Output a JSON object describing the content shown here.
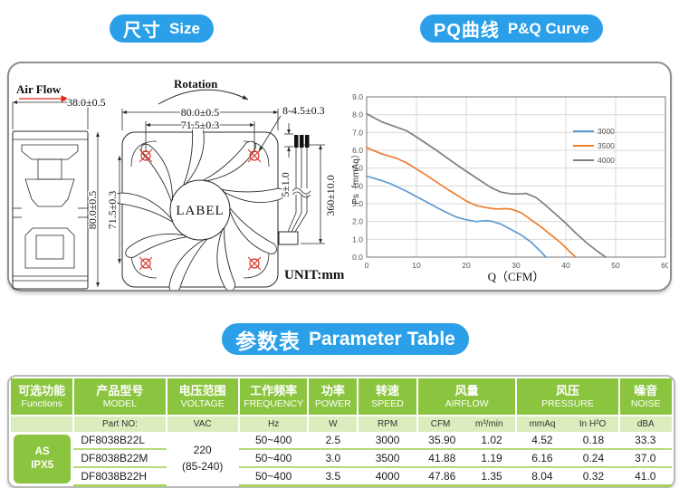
{
  "badges": {
    "size": {
      "zh": "尺寸",
      "en": "Size"
    },
    "pq": {
      "zh": "PQ曲线",
      "en": "P&Q Curve"
    },
    "param": {
      "zh": "参数表",
      "en": "Parameter Table"
    }
  },
  "colors": {
    "accent_blue": "#2BA0E8",
    "table_green": "#8BC53F",
    "table_light_green": "#DCEDBD",
    "row_line_green": "#B5DB7C",
    "drawing_red": "#E3261D"
  },
  "drawing": {
    "air_flow": "Air Flow",
    "rotation": "Rotation",
    "dim_depth": "38.0±0.5",
    "dim_width": "80.0±0.5",
    "dim_hole_span_h": "71.5±0.3",
    "dim_holes": "8-4.5±0.3",
    "dim_height": "80.0±0.5",
    "dim_hole_span_v": "71.5±0.3",
    "fan_label": "LABEL",
    "dim_wire_tip": "5±1.0",
    "dim_wire_length": "360±10.0",
    "unit": "UNIT:mm"
  },
  "chart_data": {
    "type": "line",
    "xlabel": "Q（CFM）",
    "ylabel": "Ps（mmAq）",
    "xlim": [
      0,
      60
    ],
    "ylim": [
      0,
      9
    ],
    "xticks": [
      0,
      10,
      20,
      30,
      40,
      50,
      60
    ],
    "ytick_labels": [
      "0.0",
      "1.0",
      "2.0",
      "3.0",
      "4.0",
      "5.0",
      "6.0",
      "7.0",
      "8.0",
      "9.0"
    ],
    "grid": true,
    "legend_position": "upper right",
    "series": [
      {
        "name": "3000",
        "color": "#5B9BD5",
        "points": [
          [
            0,
            4.55
          ],
          [
            3,
            4.3
          ],
          [
            5,
            4.1
          ],
          [
            8,
            3.7
          ],
          [
            12,
            3.1
          ],
          [
            15,
            2.65
          ],
          [
            18,
            2.25
          ],
          [
            20,
            2.1
          ],
          [
            22,
            2.0
          ],
          [
            24,
            2.05
          ],
          [
            25,
            2.02
          ],
          [
            27,
            1.85
          ],
          [
            29,
            1.55
          ],
          [
            31,
            1.25
          ],
          [
            33,
            0.85
          ],
          [
            35,
            0.3
          ],
          [
            36,
            0.0
          ]
        ]
      },
      {
        "name": "3500",
        "color": "#ED7D31",
        "points": [
          [
            0,
            6.15
          ],
          [
            3,
            5.8
          ],
          [
            6,
            5.55
          ],
          [
            8,
            5.3
          ],
          [
            12,
            4.6
          ],
          [
            16,
            3.85
          ],
          [
            20,
            3.15
          ],
          [
            22,
            2.9
          ],
          [
            24,
            2.78
          ],
          [
            26,
            2.7
          ],
          [
            28,
            2.72
          ],
          [
            29,
            2.7
          ],
          [
            31,
            2.5
          ],
          [
            33,
            2.1
          ],
          [
            35,
            1.7
          ],
          [
            37,
            1.25
          ],
          [
            39,
            0.8
          ],
          [
            41,
            0.25
          ],
          [
            42,
            0.0
          ]
        ]
      },
      {
        "name": "4000",
        "color": "#7F7F7F",
        "points": [
          [
            0,
            8.05
          ],
          [
            3,
            7.6
          ],
          [
            6,
            7.3
          ],
          [
            8,
            7.1
          ],
          [
            10,
            6.75
          ],
          [
            14,
            6.0
          ],
          [
            18,
            5.2
          ],
          [
            22,
            4.45
          ],
          [
            25,
            3.9
          ],
          [
            27,
            3.65
          ],
          [
            29,
            3.55
          ],
          [
            31,
            3.55
          ],
          [
            32,
            3.58
          ],
          [
            34,
            3.35
          ],
          [
            36,
            2.9
          ],
          [
            38,
            2.4
          ],
          [
            40,
            1.9
          ],
          [
            42,
            1.35
          ],
          [
            44,
            0.85
          ],
          [
            46,
            0.4
          ],
          [
            48,
            0.0
          ]
        ]
      }
    ]
  },
  "table": {
    "headers": [
      {
        "zh": "可选功能",
        "en": "Functions"
      },
      {
        "zh": "产品型号",
        "en": "MODEL"
      },
      {
        "zh": "电压范围",
        "en": "VOLTAGE"
      },
      {
        "zh": "工作频率",
        "en": "FREQUENCY"
      },
      {
        "zh": "功率",
        "en": "POWER"
      },
      {
        "zh": "转速",
        "en": "SPEED"
      },
      {
        "zh": "风量",
        "en": "AIRFLOW"
      },
      {
        "zh": "风压",
        "en": "PRESSURE"
      },
      {
        "zh": "噪音",
        "en": "NOISE"
      }
    ],
    "sub": {
      "part_no": "Part NO:",
      "vac": "VAC",
      "hz": "Hz",
      "w": "W",
      "rpm": "RPM",
      "cfm": "CFM",
      "m3": "m³/min",
      "mmaq": "mmAq",
      "inh2o": "In H²O",
      "dba": "dBA"
    },
    "functions": {
      "line1": "AS",
      "line2": "IPX5"
    },
    "voltage": {
      "line1": "220",
      "line2": "(85-240)"
    },
    "rows": [
      {
        "model": "DF8038B22L",
        "frequency": "50~400",
        "power": "2.5",
        "speed": "3000",
        "airflow_cfm": "35.90",
        "airflow_m3": "1.02",
        "pressure_mmaq": "4.52",
        "pressure_inh2o": "0.18",
        "noise": "33.3"
      },
      {
        "model": "DF8038B22M",
        "frequency": "50~400",
        "power": "3.0",
        "speed": "3500",
        "airflow_cfm": "41.88",
        "airflow_m3": "1.19",
        "pressure_mmaq": "6.16",
        "pressure_inh2o": "0.24",
        "noise": "37.0"
      },
      {
        "model": "DF8038B22H",
        "frequency": "50~400",
        "power": "3.5",
        "speed": "4000",
        "airflow_cfm": "47.86",
        "airflow_m3": "1.35",
        "pressure_mmaq": "8.04",
        "pressure_inh2o": "0.32",
        "noise": "41.0"
      }
    ]
  }
}
